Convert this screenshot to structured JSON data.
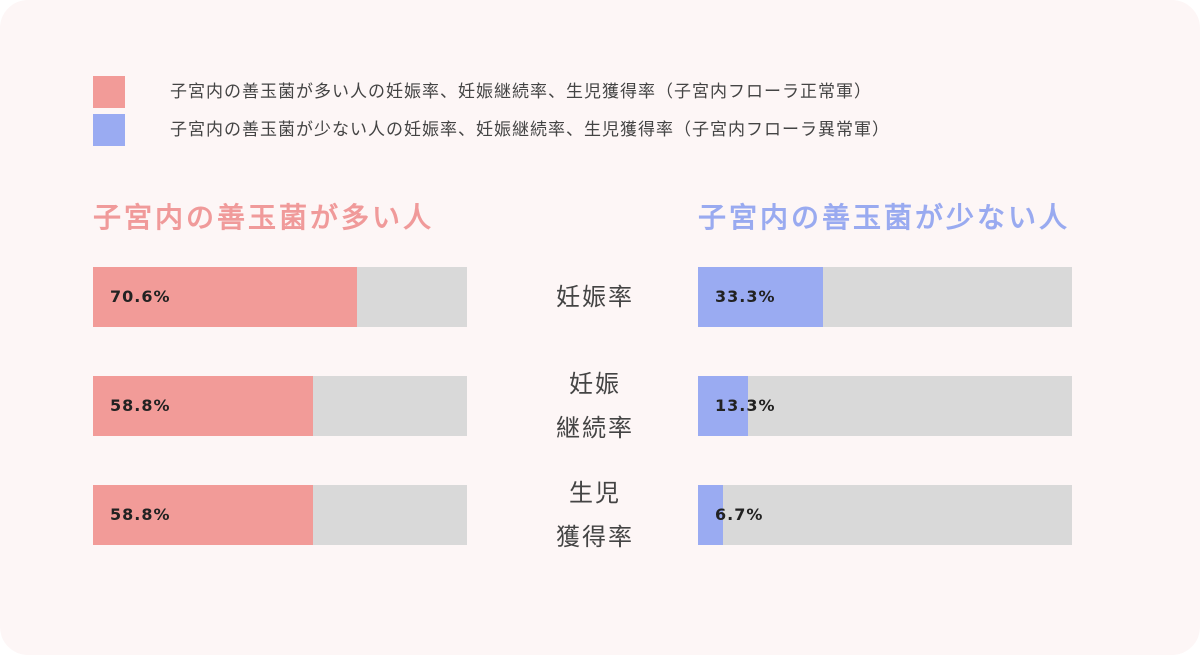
{
  "chart_data": {
    "type": "bar",
    "orientation": "horizontal",
    "categories": [
      "妊娠率",
      "妊娠\n継続率",
      "生児\n獲得率"
    ],
    "xlim": [
      0,
      100
    ],
    "track_color": "#d9d9d9",
    "series": [
      {
        "name": "子宮内の善玉菌が多い人の妊娠率、妊娠継続率、生児獲得率（子宮内フローラ正常軍）",
        "title": "子宮内の善玉菌が多い人",
        "color": "#f29b98",
        "title_color": "#f09a9a",
        "values": [
          70.6,
          58.8,
          58.8
        ],
        "value_labels": [
          "70.6%",
          "58.8%",
          "58.8%"
        ]
      },
      {
        "name": "子宮内の善玉菌が少ない人の妊娠率、妊娠継続率、生児獲得率（子宮内フローラ異常軍）",
        "title": "子宮内の善玉菌が少ない人",
        "color": "#9aabf2",
        "title_color": "#99aaf0",
        "values": [
          33.3,
          13.3,
          6.7
        ],
        "value_labels": [
          "33.3%",
          "13.3%",
          "6.7%"
        ]
      }
    ]
  }
}
